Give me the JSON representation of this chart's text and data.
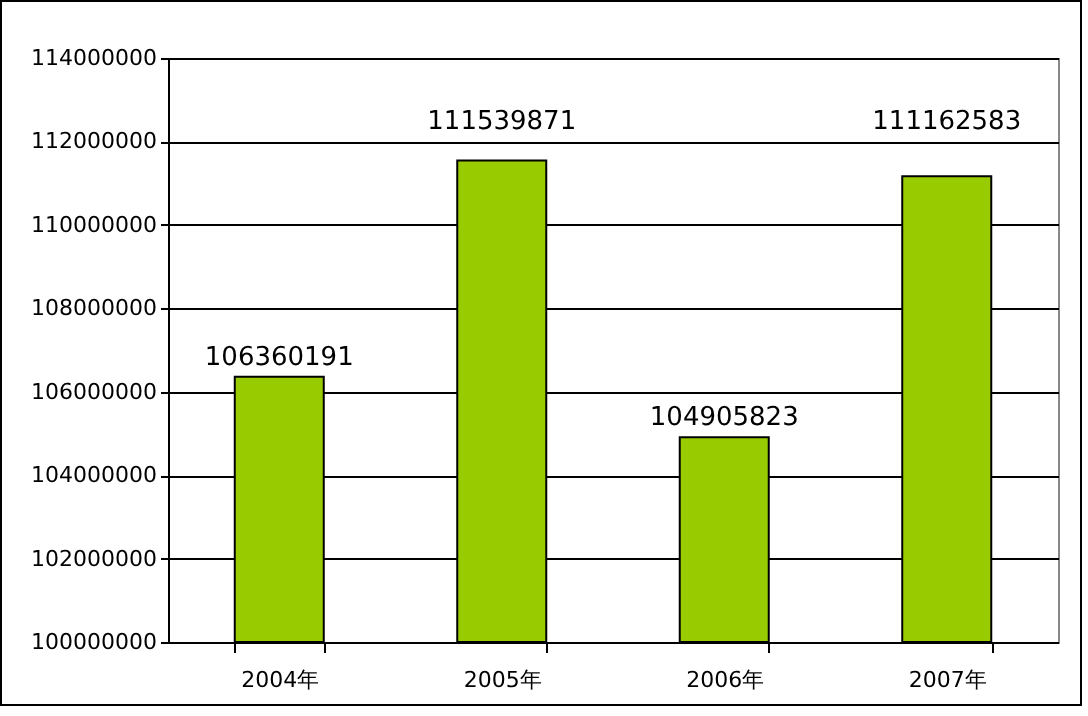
{
  "chart_data": {
    "type": "bar",
    "categories": [
      "2004年",
      "2005年",
      "2006年",
      "2007年"
    ],
    "values": [
      106360191,
      111539871,
      104905823,
      111162583
    ],
    "color": "#99cc00",
    "ylim": [
      100000000,
      114000000
    ],
    "yticks": [
      100000000,
      102000000,
      104000000,
      106000000,
      108000000,
      110000000,
      112000000,
      114000000
    ],
    "grid": "y",
    "data_labels": true
  }
}
